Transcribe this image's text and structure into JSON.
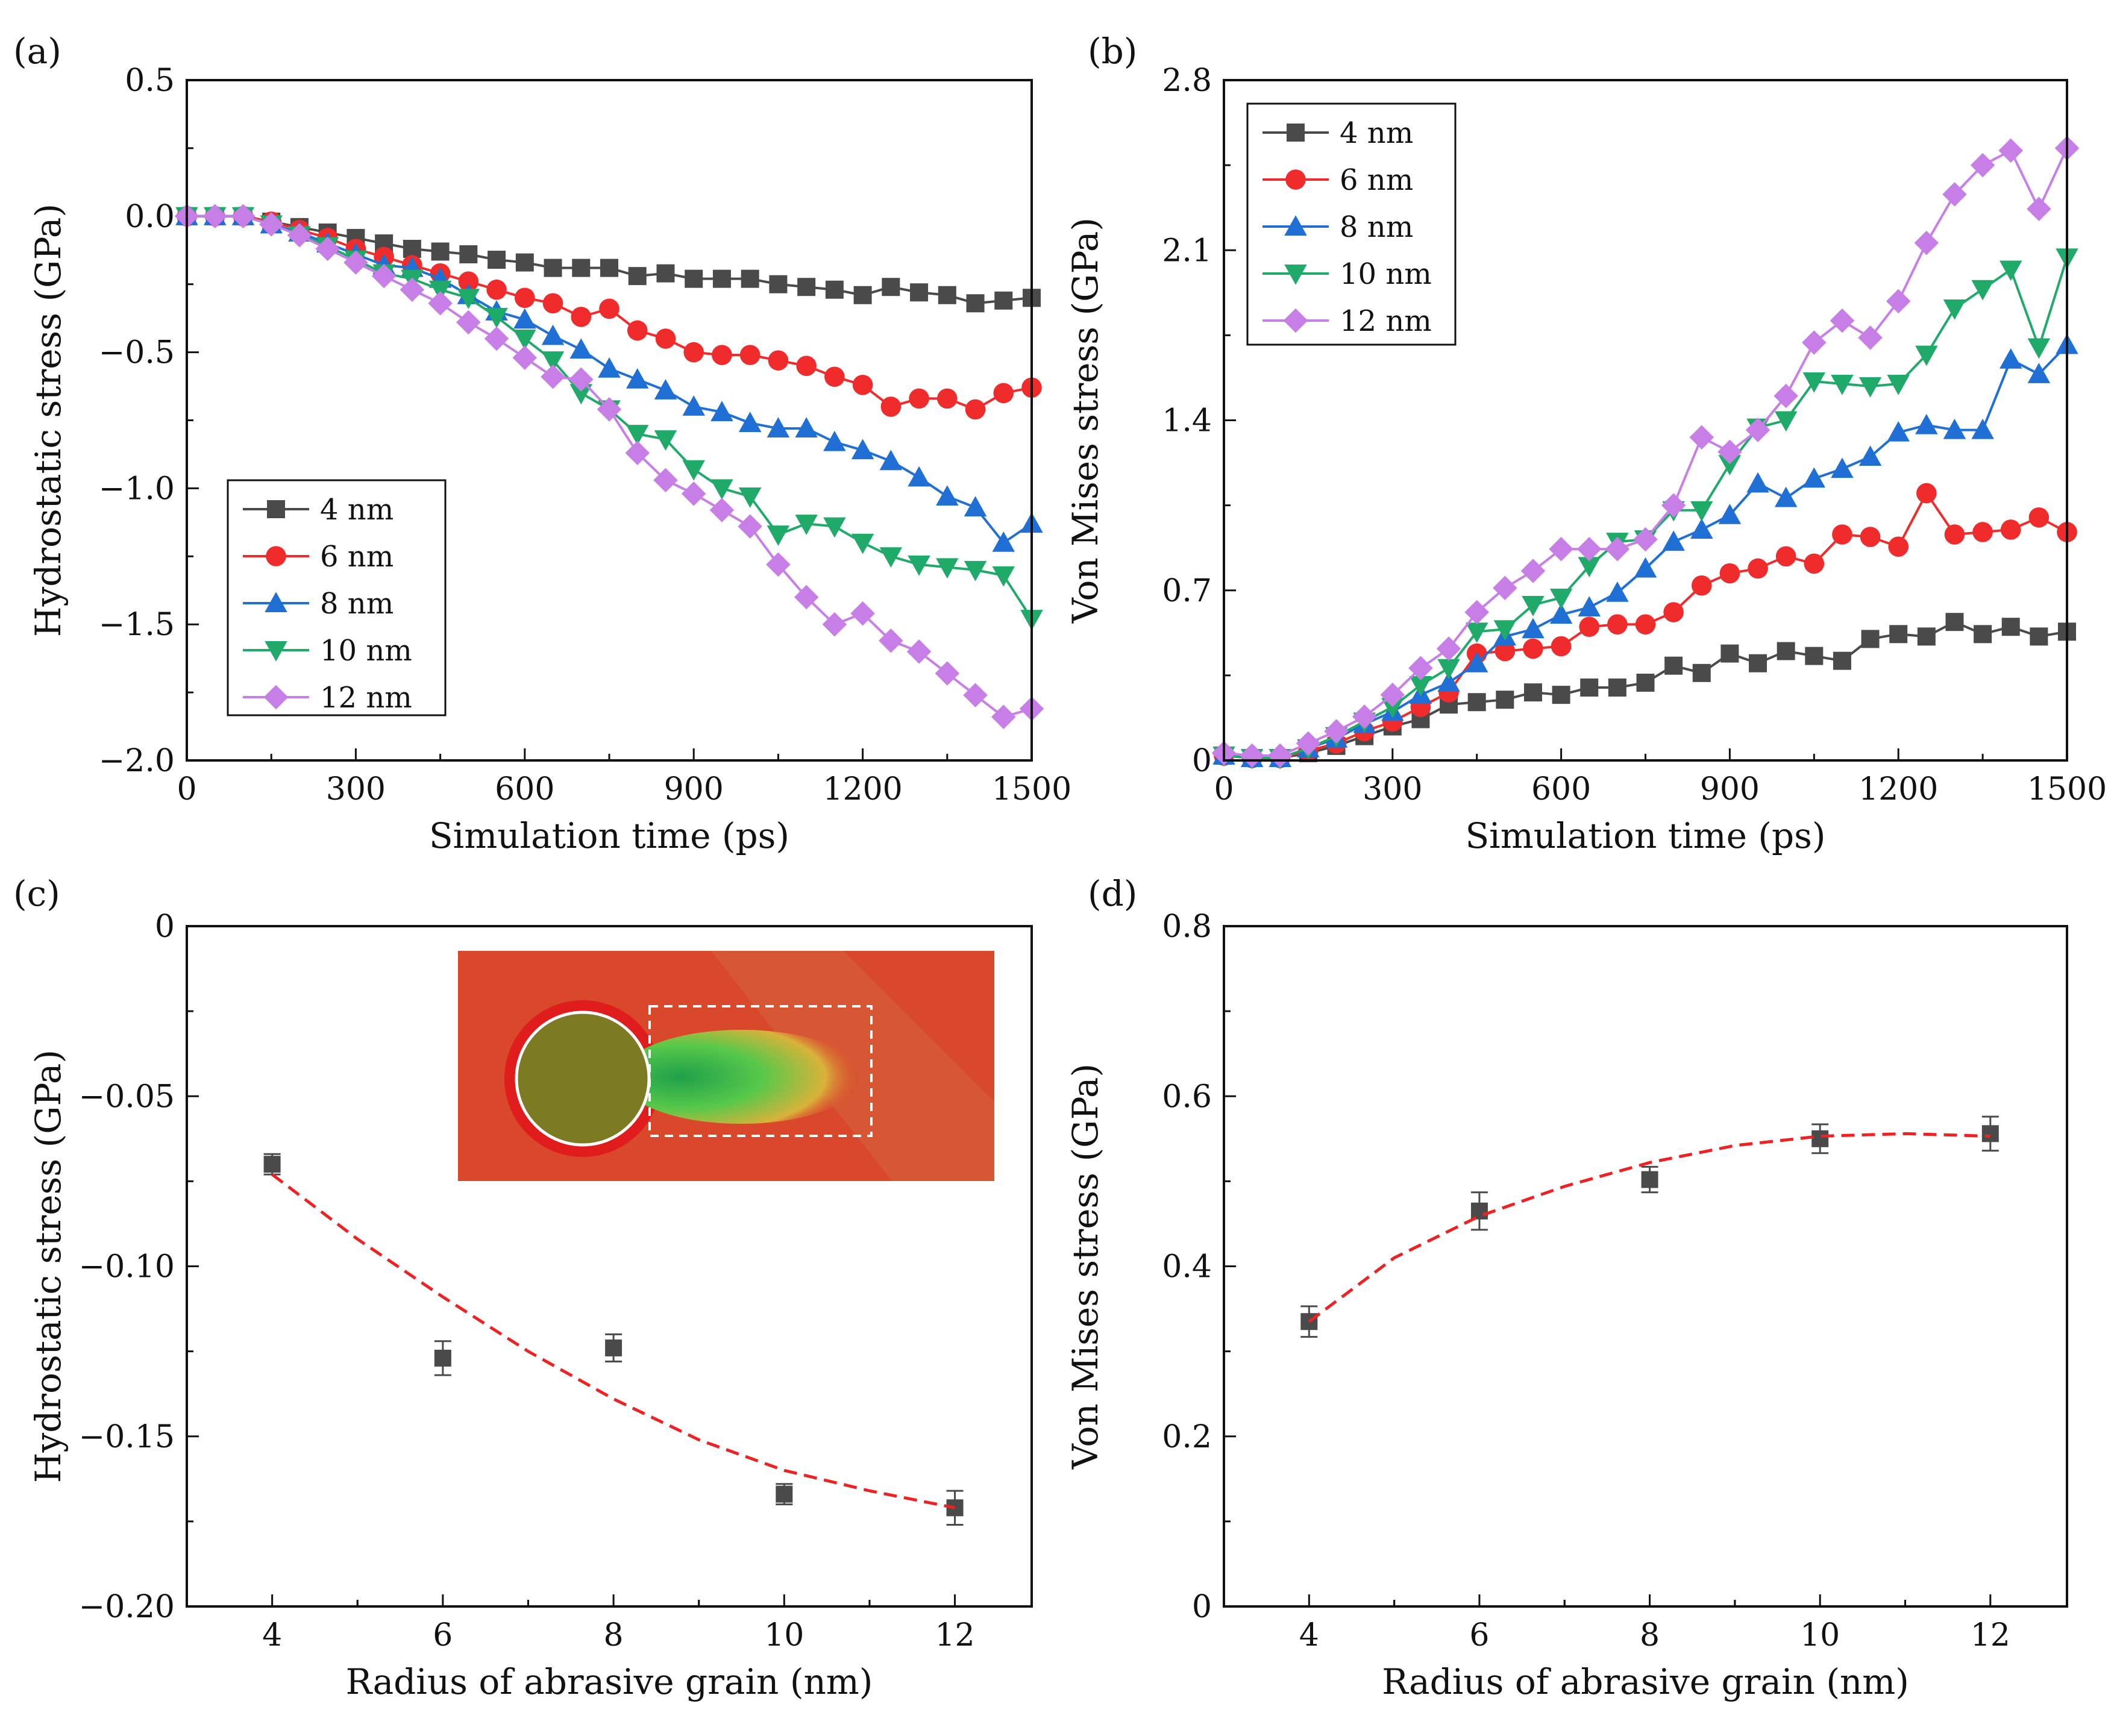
{
  "chart_data": [
    {
      "panel": "(a)",
      "type": "line",
      "xlabel": "Simulation time (ps)",
      "ylabel": "Hydrostatic stress (GPa)",
      "xlim": [
        0,
        1500
      ],
      "ylim": [
        -2.0,
        0.5
      ],
      "xticks": [
        0,
        300,
        600,
        900,
        1200,
        1500
      ],
      "xtick_labels": [
        "0",
        "300",
        "600",
        "900",
        "1200",
        "1500"
      ],
      "yticks": [
        0.5,
        0.0,
        -0.5,
        -1.0,
        -1.5,
        -2.0
      ],
      "ytick_labels": [
        "0.5",
        "0.0",
        "−0.5",
        "−1.0",
        "−1.5",
        "−2.0"
      ],
      "legend_position": "lower-left",
      "x": [
        0,
        50,
        100,
        150,
        200,
        250,
        300,
        350,
        400,
        450,
        500,
        550,
        600,
        650,
        700,
        750,
        800,
        850,
        900,
        950,
        1000,
        1050,
        1100,
        1150,
        1200,
        1250,
        1300,
        1350,
        1400,
        1450,
        1500
      ],
      "series": [
        {
          "name": "4 nm",
          "color": "#4a4a4a",
          "marker": "square",
          "values": [
            0,
            0,
            0,
            -0.02,
            -0.04,
            -0.06,
            -0.08,
            -0.1,
            -0.12,
            -0.13,
            -0.14,
            -0.16,
            -0.17,
            -0.19,
            -0.19,
            -0.19,
            -0.22,
            -0.21,
            -0.23,
            -0.23,
            -0.23,
            -0.25,
            -0.26,
            -0.27,
            -0.29,
            -0.26,
            -0.28,
            -0.29,
            -0.32,
            -0.31,
            -0.3
          ]
        },
        {
          "name": "6 nm",
          "color": "#ef2b2b",
          "marker": "circle",
          "values": [
            0,
            0,
            0,
            -0.02,
            -0.05,
            -0.08,
            -0.12,
            -0.15,
            -0.18,
            -0.21,
            -0.24,
            -0.27,
            -0.3,
            -0.32,
            -0.37,
            -0.34,
            -0.42,
            -0.45,
            -0.5,
            -0.51,
            -0.51,
            -0.53,
            -0.55,
            -0.59,
            -0.62,
            -0.7,
            -0.67,
            -0.67,
            -0.71,
            -0.65,
            -0.63
          ]
        },
        {
          "name": "8 nm",
          "color": "#1f6fd4",
          "marker": "triangle-up",
          "values": [
            0,
            0,
            0,
            -0.03,
            -0.06,
            -0.1,
            -0.14,
            -0.18,
            -0.19,
            -0.23,
            -0.29,
            -0.35,
            -0.38,
            -0.44,
            -0.49,
            -0.56,
            -0.6,
            -0.64,
            -0.7,
            -0.72,
            -0.76,
            -0.78,
            -0.78,
            -0.83,
            -0.86,
            -0.9,
            -0.96,
            -1.03,
            -1.07,
            -1.2,
            -1.13
          ]
        },
        {
          "name": "10 nm",
          "color": "#1faa6a",
          "marker": "triangle-down",
          "values": [
            0,
            0,
            0,
            -0.03,
            -0.07,
            -0.11,
            -0.16,
            -0.21,
            -0.23,
            -0.27,
            -0.3,
            -0.37,
            -0.45,
            -0.53,
            -0.65,
            -0.71,
            -0.8,
            -0.82,
            -0.93,
            -1.0,
            -1.03,
            -1.17,
            -1.13,
            -1.14,
            -1.2,
            -1.25,
            -1.28,
            -1.29,
            -1.3,
            -1.32,
            -1.48
          ]
        },
        {
          "name": "12 nm",
          "color": "#c77ee6",
          "marker": "diamond",
          "values": [
            0,
            0,
            0,
            -0.03,
            -0.07,
            -0.12,
            -0.17,
            -0.22,
            -0.27,
            -0.32,
            -0.39,
            -0.45,
            -0.52,
            -0.59,
            -0.6,
            -0.71,
            -0.87,
            -0.97,
            -1.02,
            -1.08,
            -1.14,
            -1.28,
            -1.4,
            -1.5,
            -1.46,
            -1.56,
            -1.6,
            -1.68,
            -1.76,
            -1.84,
            -1.81
          ]
        }
      ]
    },
    {
      "panel": "(b)",
      "type": "line",
      "xlabel": "Simulation time (ps)",
      "ylabel": "Von Mises stress (GPa)",
      "xlim": [
        0,
        1500
      ],
      "ylim": [
        0,
        2.8
      ],
      "xticks": [
        0,
        300,
        600,
        900,
        1200,
        1500
      ],
      "xtick_labels": [
        "0",
        "300",
        "600",
        "900",
        "1200",
        "1500"
      ],
      "yticks": [
        0,
        0.7,
        1.4,
        2.1,
        2.8
      ],
      "ytick_labels": [
        "0",
        "0.7",
        "1.4",
        "2.1",
        "2.8"
      ],
      "legend_position": "top-left",
      "x": [
        0,
        50,
        100,
        150,
        200,
        250,
        300,
        350,
        400,
        450,
        500,
        550,
        600,
        650,
        700,
        750,
        800,
        850,
        900,
        950,
        1000,
        1050,
        1100,
        1150,
        1200,
        1250,
        1300,
        1350,
        1400,
        1450,
        1500
      ],
      "series": [
        {
          "name": "4 nm",
          "color": "#4a4a4a",
          "marker": "square",
          "values": [
            0.02,
            0.01,
            0.01,
            0.03,
            0.06,
            0.1,
            0.14,
            0.17,
            0.23,
            0.24,
            0.25,
            0.28,
            0.27,
            0.3,
            0.3,
            0.32,
            0.39,
            0.36,
            0.44,
            0.4,
            0.45,
            0.43,
            0.41,
            0.5,
            0.52,
            0.51,
            0.57,
            0.52,
            0.55,
            0.51,
            0.53
          ]
        },
        {
          "name": "6 nm",
          "color": "#ef2b2b",
          "marker": "circle",
          "values": [
            0.02,
            0.01,
            0.01,
            0.04,
            0.07,
            0.12,
            0.16,
            0.22,
            0.28,
            0.44,
            0.45,
            0.46,
            0.47,
            0.55,
            0.56,
            0.56,
            0.61,
            0.72,
            0.77,
            0.79,
            0.84,
            0.81,
            0.93,
            0.92,
            0.88,
            1.1,
            0.93,
            0.94,
            0.95,
            1.0,
            0.94
          ]
        },
        {
          "name": "8 nm",
          "color": "#1f6fd4",
          "marker": "triangle-up",
          "values": [
            0.02,
            0.01,
            0.01,
            0.05,
            0.09,
            0.15,
            0.2,
            0.27,
            0.32,
            0.4,
            0.51,
            0.54,
            0.6,
            0.63,
            0.69,
            0.79,
            0.9,
            0.95,
            1.01,
            1.14,
            1.08,
            1.16,
            1.2,
            1.25,
            1.35,
            1.38,
            1.36,
            1.36,
            1.65,
            1.59,
            1.71
          ]
        },
        {
          "name": "10 nm",
          "color": "#1faa6a",
          "marker": "triangle-down",
          "values": [
            0.02,
            0.01,
            0.01,
            0.05,
            0.1,
            0.16,
            0.22,
            0.31,
            0.38,
            0.53,
            0.54,
            0.64,
            0.67,
            0.8,
            0.9,
            0.91,
            1.03,
            1.03,
            1.22,
            1.37,
            1.4,
            1.56,
            1.55,
            1.54,
            1.55,
            1.67,
            1.86,
            1.94,
            2.02,
            1.7,
            2.07
          ]
        },
        {
          "name": "12 nm",
          "color": "#c77ee6",
          "marker": "diamond",
          "values": [
            0.03,
            0.02,
            0.02,
            0.07,
            0.12,
            0.18,
            0.27,
            0.38,
            0.46,
            0.61,
            0.71,
            0.78,
            0.87,
            0.87,
            0.87,
            0.91,
            1.05,
            1.33,
            1.27,
            1.36,
            1.5,
            1.72,
            1.81,
            1.74,
            1.89,
            2.13,
            2.33,
            2.45,
            2.51,
            2.27,
            2.52
          ]
        }
      ]
    },
    {
      "panel": "(c)",
      "type": "scatter",
      "xlabel": "Radius of abrasive grain (nm)",
      "ylabel": "Hydrostatic stress (GPa)",
      "xlim": [
        3,
        12.9
      ],
      "ylim": [
        -0.2,
        0
      ],
      "xticks": [
        4,
        6,
        8,
        10,
        12
      ],
      "xtick_labels": [
        "4",
        "6",
        "8",
        "10",
        "12"
      ],
      "yticks": [
        0,
        -0.05,
        -0.1,
        -0.15,
        -0.2
      ],
      "ytick_labels": [
        "0",
        "−0.05",
        "−0.10",
        "−0.15",
        "−0.20"
      ],
      "series": [
        {
          "name": "data",
          "color": "#4a4a4a",
          "marker": "square",
          "x": [
            4,
            6,
            8,
            10,
            12
          ],
          "values": [
            -0.07,
            -0.127,
            -0.124,
            -0.167,
            -0.171
          ],
          "error": [
            0.003,
            0.005,
            0.004,
            0.003,
            0.005
          ]
        },
        {
          "name": "fit",
          "color": "#ee2222",
          "style": "dashed",
          "x": [
            4,
            5,
            6,
            7,
            8,
            9,
            10,
            11,
            12
          ],
          "values": [
            -0.073,
            -0.092,
            -0.109,
            -0.125,
            -0.139,
            -0.151,
            -0.16,
            -0.166,
            -0.171
          ]
        }
      ],
      "inset": {
        "description_color_main": "#d9482b",
        "grain_color": "#7c7a22",
        "plume_color": "#35b548"
      }
    },
    {
      "panel": "(d)",
      "type": "scatter",
      "xlabel": "Radius of abrasive grain (nm)",
      "ylabel": "Von Mises stress (GPa)",
      "xlim": [
        3,
        12.9
      ],
      "ylim": [
        0,
        0.8
      ],
      "xticks": [
        4,
        6,
        8,
        10,
        12
      ],
      "xtick_labels": [
        "4",
        "6",
        "8",
        "10",
        "12"
      ],
      "yticks": [
        0,
        0.2,
        0.4,
        0.6,
        0.8
      ],
      "ytick_labels": [
        "0",
        "0.2",
        "0.4",
        "0.6",
        "0.8"
      ],
      "series": [
        {
          "name": "data",
          "color": "#4a4a4a",
          "marker": "square",
          "x": [
            4,
            6,
            8,
            10,
            12
          ],
          "values": [
            0.335,
            0.465,
            0.502,
            0.55,
            0.556
          ],
          "error": [
            0.018,
            0.022,
            0.015,
            0.017,
            0.02
          ]
        },
        {
          "name": "fit",
          "color": "#ee2222",
          "style": "dashed",
          "x": [
            4,
            5,
            6,
            7,
            8,
            9,
            10,
            11,
            12
          ],
          "values": [
            0.335,
            0.41,
            0.459,
            0.494,
            0.522,
            0.542,
            0.553,
            0.556,
            0.553
          ]
        }
      ]
    }
  ]
}
